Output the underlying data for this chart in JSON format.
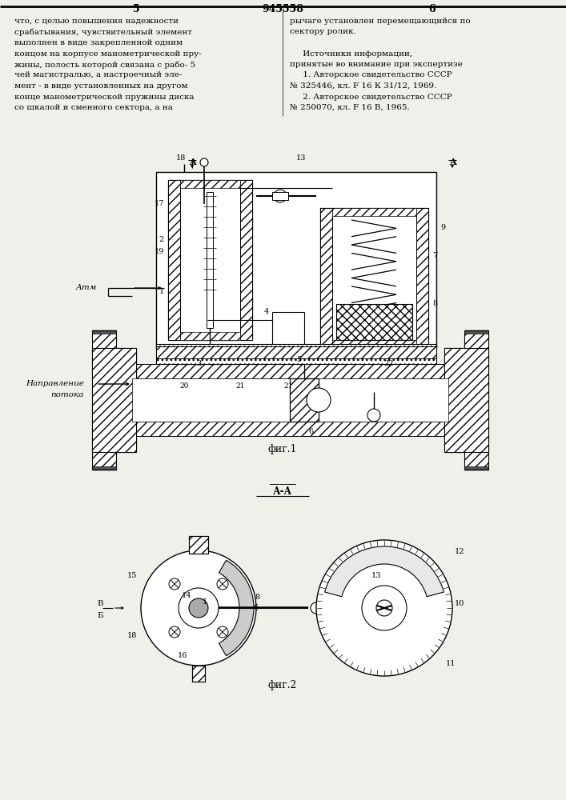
{
  "bg_color": "#f0f0eb",
  "patent_number": "945558",
  "page_left": "5",
  "page_right": "6",
  "fig1_caption": "фиг.1",
  "fig2_caption": "фиг.2",
  "section_label": "А-А",
  "text_left": "что, с целью повышения надежности\nсрабатывания, чувствительный элемент\nвыполнен в виде закрепленной одним\nконцом на корпусе манометрической пру-\nжины, полость которой связана с рабо-\nчей магистралью, а настроечный эле-\nмент - в виде установленных на другом\nконце манометрической пружины диска\nсо шкалой и сменного сектора, а на",
  "text_right": "рычаге установлен перемещающийся по\nсектору ролик.\n\n     Источники информации,\nпринятые во внимание при экспертизе\n     1. Авторское свидетельство СССР\n№ 325446, кл. F 16 К 31/12, 1969.\n     2. Авторское свидетельство СССР\n№ 250070, кл. F 16 В, 1965."
}
